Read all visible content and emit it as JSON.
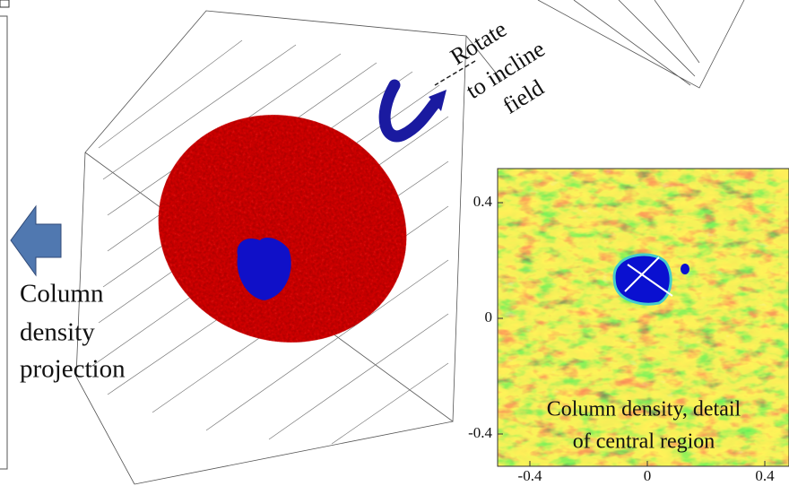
{
  "annotations": {
    "rotate": [
      "Rotate",
      "to incline",
      "field"
    ],
    "projection": [
      "Column",
      "density",
      "projection"
    ]
  },
  "inset": {
    "caption": [
      "Column density, detail",
      "of central region"
    ],
    "xticks": [
      -0.4,
      0,
      0.4
    ],
    "yticks": [
      0.4,
      0,
      -0.4
    ]
  }
}
